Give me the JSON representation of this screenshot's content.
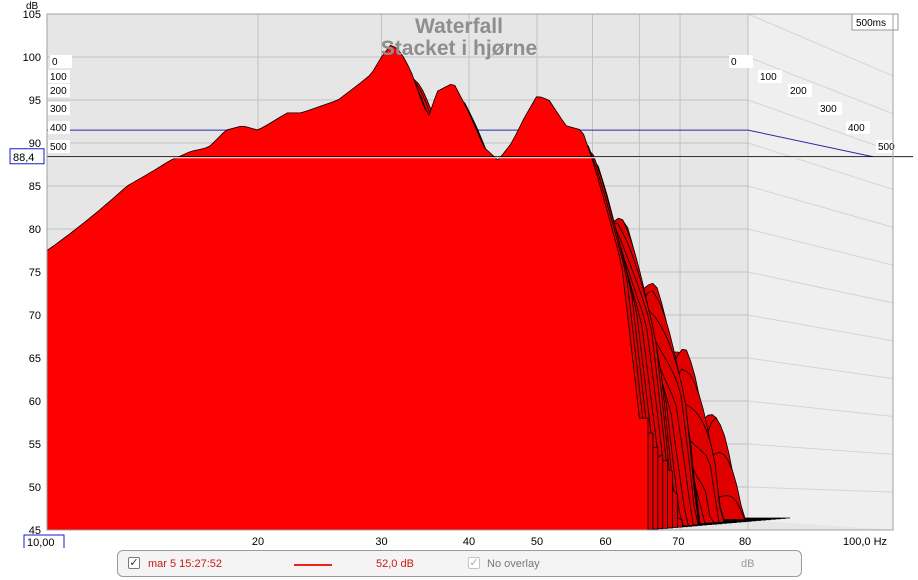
{
  "chart_data": {
    "type": "area",
    "title": "Waterfall",
    "subtitle": "Stacket i hjørne",
    "ylabel": "dB",
    "ylim": [
      45,
      105
    ],
    "yticks": [
      105,
      100,
      95,
      90,
      85,
      80,
      75,
      70,
      65,
      60,
      55,
      50,
      45
    ],
    "xlim_hz": [
      10,
      100
    ],
    "x_scale": "log",
    "xticks": [
      {
        "value": 20,
        "label": "20"
      },
      {
        "value": 30,
        "label": "30"
      },
      {
        "value": 40,
        "label": "40"
      },
      {
        "value": 50,
        "label": "50"
      },
      {
        "value": 60,
        "label": "60"
      },
      {
        "value": 70,
        "label": "70"
      },
      {
        "value": 80,
        "label": "80"
      },
      {
        "value": 100,
        "label": "100,0 Hz"
      }
    ],
    "x_start_readout": "10,00",
    "cursor_readout": "88,4",
    "cursor_db": 88.4,
    "time_axis_ms": [
      0,
      100,
      200,
      300,
      400,
      500
    ],
    "time_axis_labels": [
      "0",
      "100",
      "200",
      "300",
      "400",
      "500"
    ],
    "time_span_label": "500ms",
    "slice_count": 30,
    "front_slice_0ms": {
      "freq_hz": [
        10,
        11,
        12,
        13,
        14,
        15,
        16,
        17,
        18,
        19,
        20,
        21,
        22,
        23,
        24,
        25,
        26,
        27,
        28,
        29,
        30,
        31,
        32,
        33,
        34,
        35,
        36,
        38,
        40,
        42,
        44,
        46,
        48,
        50,
        52,
        55,
        58,
        60,
        63,
        66,
        70
      ],
      "db": [
        77.5,
        80,
        82.5,
        85,
        86.5,
        88,
        89,
        89.5,
        91.5,
        92,
        91.5,
        92.5,
        93.5,
        93.5,
        94,
        94.5,
        95,
        96,
        97,
        98,
        100,
        101.5,
        100.5,
        98.5,
        95.5,
        93,
        96,
        97,
        93.5,
        89.5,
        88,
        90,
        93,
        95.5,
        95,
        92,
        91.5,
        88,
        82,
        76,
        58
      ]
    }
  },
  "legend": {
    "entries": [
      {
        "checked": true,
        "label": "mar 5 15:27:52",
        "value": "52,0 dB",
        "color": "#e8261c"
      }
    ],
    "overlay_label": "No overlay",
    "overlay_unit": "dB"
  },
  "colors": {
    "fill_front": "#ff0000",
    "fill_back": "#e00000",
    "outline": "#000000",
    "plot_background": "#e6e6e6",
    "grid": "#c2c2c2",
    "floor_line": "#2a2aa8",
    "readout_box": "#1a1acc"
  }
}
